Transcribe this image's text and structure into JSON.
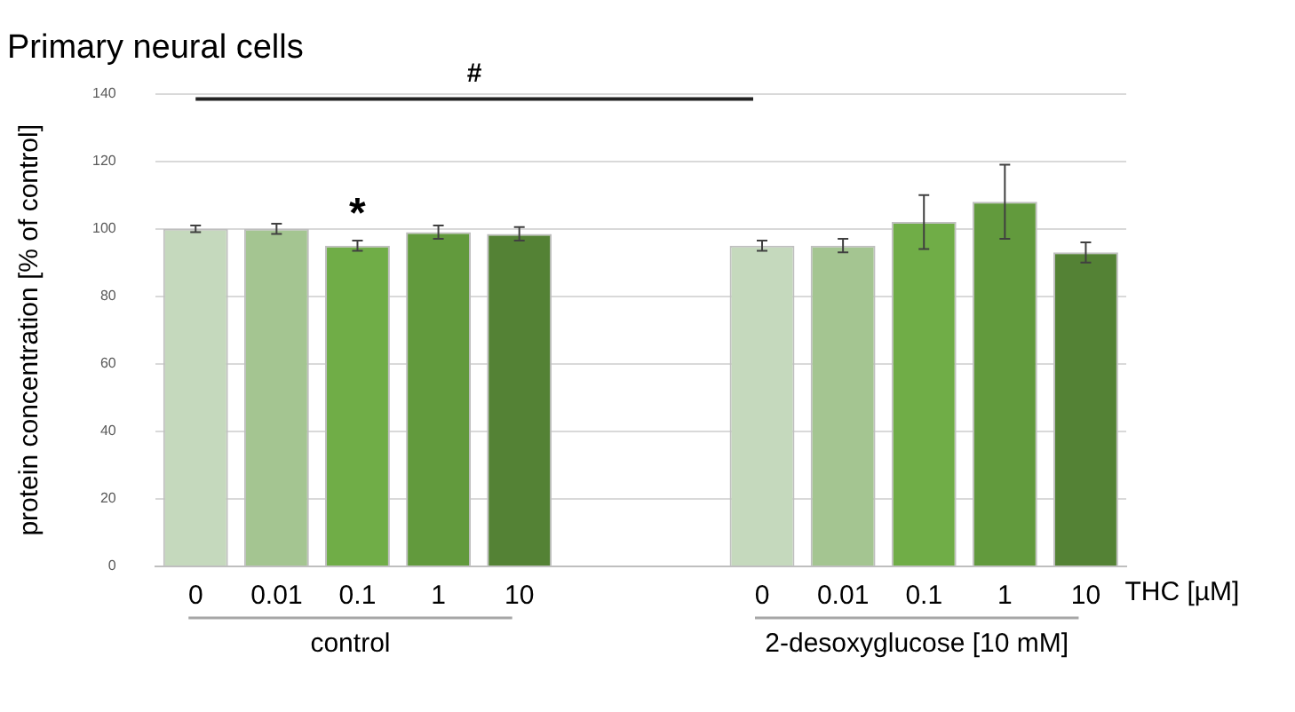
{
  "chart_data": {
    "type": "bar",
    "title": "Primary neural cells",
    "ylabel": "protein concentration [% of control]",
    "categories": [
      "0",
      "0.01",
      "0.1",
      "1",
      "10",
      null,
      null,
      "0",
      "0.01",
      "0.1",
      "1",
      "10"
    ],
    "values": [
      100,
      100,
      95,
      99,
      98.5,
      null,
      null,
      95,
      95,
      102,
      108,
      93
    ],
    "errors": [
      1,
      1.5,
      1.5,
      2,
      2,
      null,
      null,
      1.5,
      2,
      8,
      11,
      3
    ],
    "colors": [
      "#c5d9bd",
      "#a4c591",
      "#70ad47",
      "#629a3d",
      "#548235",
      null,
      null,
      "#c5d9bd",
      "#a4c591",
      "#70ad47",
      "#629a3d",
      "#548235"
    ],
    "ylim": [
      0,
      140
    ],
    "yticks": [
      0,
      20,
      40,
      60,
      80,
      100,
      120,
      140
    ],
    "grid": "y",
    "legend": false,
    "annotations": [
      "#",
      "*",
      "THC [µM]",
      "control",
      "2-desoxyglucose [10 mM]"
    ]
  }
}
